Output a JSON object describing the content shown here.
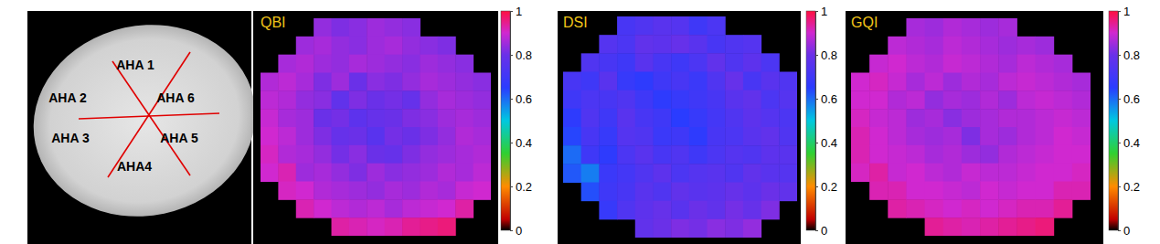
{
  "anatomy": {
    "labels": [
      "AHA 1",
      "AHA 2",
      "AHA 3",
      "AHA4",
      "AHA 5",
      "AHA 6"
    ]
  },
  "chart_data": [
    {
      "type": "heatmap",
      "title": "QBI",
      "color_range": [
        0,
        1
      ],
      "color_ticks": [
        0,
        0.2,
        0.4,
        0.6,
        0.8,
        1
      ],
      "cells": [
        [
          null,
          null,
          null,
          0.84,
          0.82,
          0.83,
          0.85,
          0.84,
          0.83,
          null,
          null,
          null,
          null
        ],
        [
          null,
          null,
          0.85,
          0.86,
          0.84,
          0.83,
          0.85,
          0.86,
          0.84,
          0.83,
          0.82,
          null,
          null
        ],
        [
          null,
          0.86,
          0.87,
          0.85,
          0.84,
          0.86,
          0.85,
          0.84,
          0.83,
          0.85,
          0.84,
          0.83,
          null
        ],
        [
          0.87,
          0.88,
          0.86,
          0.82,
          0.85,
          0.8,
          0.83,
          0.82,
          0.84,
          0.86,
          0.85,
          0.84,
          0.83
        ],
        [
          0.88,
          0.87,
          0.84,
          0.83,
          0.78,
          0.82,
          0.8,
          0.81,
          0.79,
          0.84,
          0.86,
          0.85,
          0.84
        ],
        [
          0.89,
          0.86,
          0.85,
          0.8,
          0.81,
          0.77,
          0.79,
          0.8,
          0.82,
          0.83,
          0.85,
          0.86,
          0.85
        ],
        [
          0.9,
          0.88,
          0.85,
          0.82,
          0.79,
          0.8,
          0.76,
          0.81,
          0.8,
          0.82,
          0.84,
          0.87,
          0.86
        ],
        [
          0.91,
          0.87,
          0.86,
          0.84,
          0.81,
          0.83,
          0.8,
          0.79,
          0.82,
          0.84,
          0.85,
          0.86,
          0.87
        ],
        [
          0.9,
          0.92,
          0.85,
          0.86,
          0.84,
          0.82,
          0.85,
          0.83,
          0.84,
          0.85,
          0.87,
          0.86,
          0.88
        ],
        [
          null,
          0.91,
          0.9,
          0.87,
          0.86,
          0.85,
          0.84,
          0.86,
          0.85,
          0.87,
          0.86,
          0.89,
          0.9
        ],
        [
          null,
          null,
          0.92,
          0.9,
          0.88,
          0.87,
          0.88,
          0.86,
          0.88,
          0.89,
          0.9,
          0.93,
          null
        ],
        [
          null,
          null,
          null,
          null,
          0.93,
          0.92,
          0.91,
          0.92,
          0.94,
          0.95,
          0.96,
          null,
          null
        ]
      ]
    },
    {
      "type": "heatmap",
      "title": "DSI",
      "color_range": [
        0,
        1
      ],
      "color_ticks": [
        0,
        0.2,
        0.4,
        0.6,
        0.8,
        1
      ],
      "cells": [
        [
          null,
          null,
          null,
          0.72,
          0.74,
          0.76,
          0.75,
          0.7,
          0.73,
          null,
          null,
          null,
          null
        ],
        [
          null,
          null,
          0.75,
          0.73,
          0.78,
          0.77,
          0.79,
          0.76,
          0.72,
          0.74,
          0.75,
          null,
          null
        ],
        [
          null,
          0.74,
          0.72,
          0.7,
          0.76,
          0.72,
          0.7,
          0.73,
          0.78,
          0.74,
          0.77,
          0.73,
          null
        ],
        [
          0.72,
          0.7,
          0.76,
          0.68,
          0.66,
          0.7,
          0.72,
          0.69,
          0.74,
          0.79,
          0.72,
          0.76,
          0.74
        ],
        [
          0.7,
          0.73,
          0.72,
          0.74,
          0.7,
          0.66,
          0.68,
          0.7,
          0.72,
          0.76,
          0.78,
          0.73,
          0.75
        ],
        [
          0.66,
          0.74,
          0.7,
          0.76,
          0.72,
          0.7,
          0.65,
          0.68,
          0.71,
          0.74,
          0.77,
          0.75,
          0.73
        ],
        [
          0.64,
          0.72,
          0.68,
          0.75,
          0.74,
          0.69,
          0.7,
          0.66,
          0.72,
          0.73,
          0.76,
          0.78,
          0.74
        ],
        [
          0.6,
          0.7,
          0.66,
          0.73,
          0.76,
          0.72,
          0.74,
          0.7,
          0.73,
          0.75,
          0.74,
          0.77,
          0.76
        ],
        [
          0.62,
          0.58,
          0.69,
          0.71,
          0.74,
          0.77,
          0.73,
          0.75,
          0.76,
          0.74,
          0.78,
          0.76,
          0.75
        ],
        [
          null,
          0.63,
          0.7,
          0.72,
          0.76,
          0.74,
          0.78,
          0.76,
          0.77,
          0.79,
          0.77,
          0.8,
          0.78
        ],
        [
          null,
          null,
          0.68,
          0.74,
          0.77,
          0.79,
          0.76,
          0.8,
          0.78,
          0.81,
          0.79,
          0.82,
          null
        ],
        [
          null,
          null,
          null,
          null,
          0.78,
          0.8,
          0.82,
          0.81,
          0.83,
          0.82,
          0.84,
          null,
          null
        ]
      ]
    },
    {
      "type": "heatmap",
      "title": "GQI",
      "color_range": [
        0,
        1
      ],
      "color_ticks": [
        0,
        0.2,
        0.4,
        0.6,
        0.8,
        1
      ],
      "cells": [
        [
          null,
          null,
          null,
          0.86,
          0.85,
          0.87,
          0.86,
          0.85,
          0.86,
          null,
          null,
          null,
          null
        ],
        [
          null,
          null,
          0.88,
          0.87,
          0.86,
          0.88,
          0.87,
          0.86,
          0.85,
          0.86,
          0.85,
          null,
          null
        ],
        [
          null,
          0.89,
          0.9,
          0.88,
          0.87,
          0.89,
          0.88,
          0.87,
          0.86,
          0.88,
          0.87,
          0.86,
          null
        ],
        [
          0.9,
          0.91,
          0.89,
          0.86,
          0.88,
          0.85,
          0.87,
          0.86,
          0.88,
          0.89,
          0.88,
          0.87,
          0.86
        ],
        [
          0.9,
          0.9,
          0.87,
          0.88,
          0.84,
          0.86,
          0.85,
          0.87,
          0.85,
          0.88,
          0.89,
          0.88,
          0.87
        ],
        [
          0.91,
          0.89,
          0.88,
          0.85,
          0.86,
          0.83,
          0.85,
          0.86,
          0.87,
          0.87,
          0.88,
          0.89,
          0.88
        ],
        [
          0.92,
          0.9,
          0.88,
          0.86,
          0.85,
          0.86,
          0.82,
          0.86,
          0.85,
          0.87,
          0.88,
          0.9,
          0.89
        ],
        [
          0.92,
          0.9,
          0.89,
          0.88,
          0.86,
          0.87,
          0.85,
          0.84,
          0.87,
          0.88,
          0.89,
          0.9,
          0.9
        ],
        [
          0.91,
          0.93,
          0.89,
          0.9,
          0.88,
          0.87,
          0.89,
          0.88,
          0.88,
          0.89,
          0.9,
          0.9,
          0.91
        ],
        [
          null,
          0.92,
          0.92,
          0.9,
          0.9,
          0.89,
          0.88,
          0.9,
          0.89,
          0.9,
          0.9,
          0.92,
          0.92
        ],
        [
          null,
          null,
          0.93,
          0.92,
          0.91,
          0.9,
          0.91,
          0.9,
          0.91,
          0.92,
          0.92,
          0.94,
          null
        ],
        [
          null,
          null,
          null,
          null,
          0.94,
          0.93,
          0.92,
          0.93,
          0.94,
          0.95,
          0.96,
          null,
          null
        ]
      ]
    }
  ]
}
